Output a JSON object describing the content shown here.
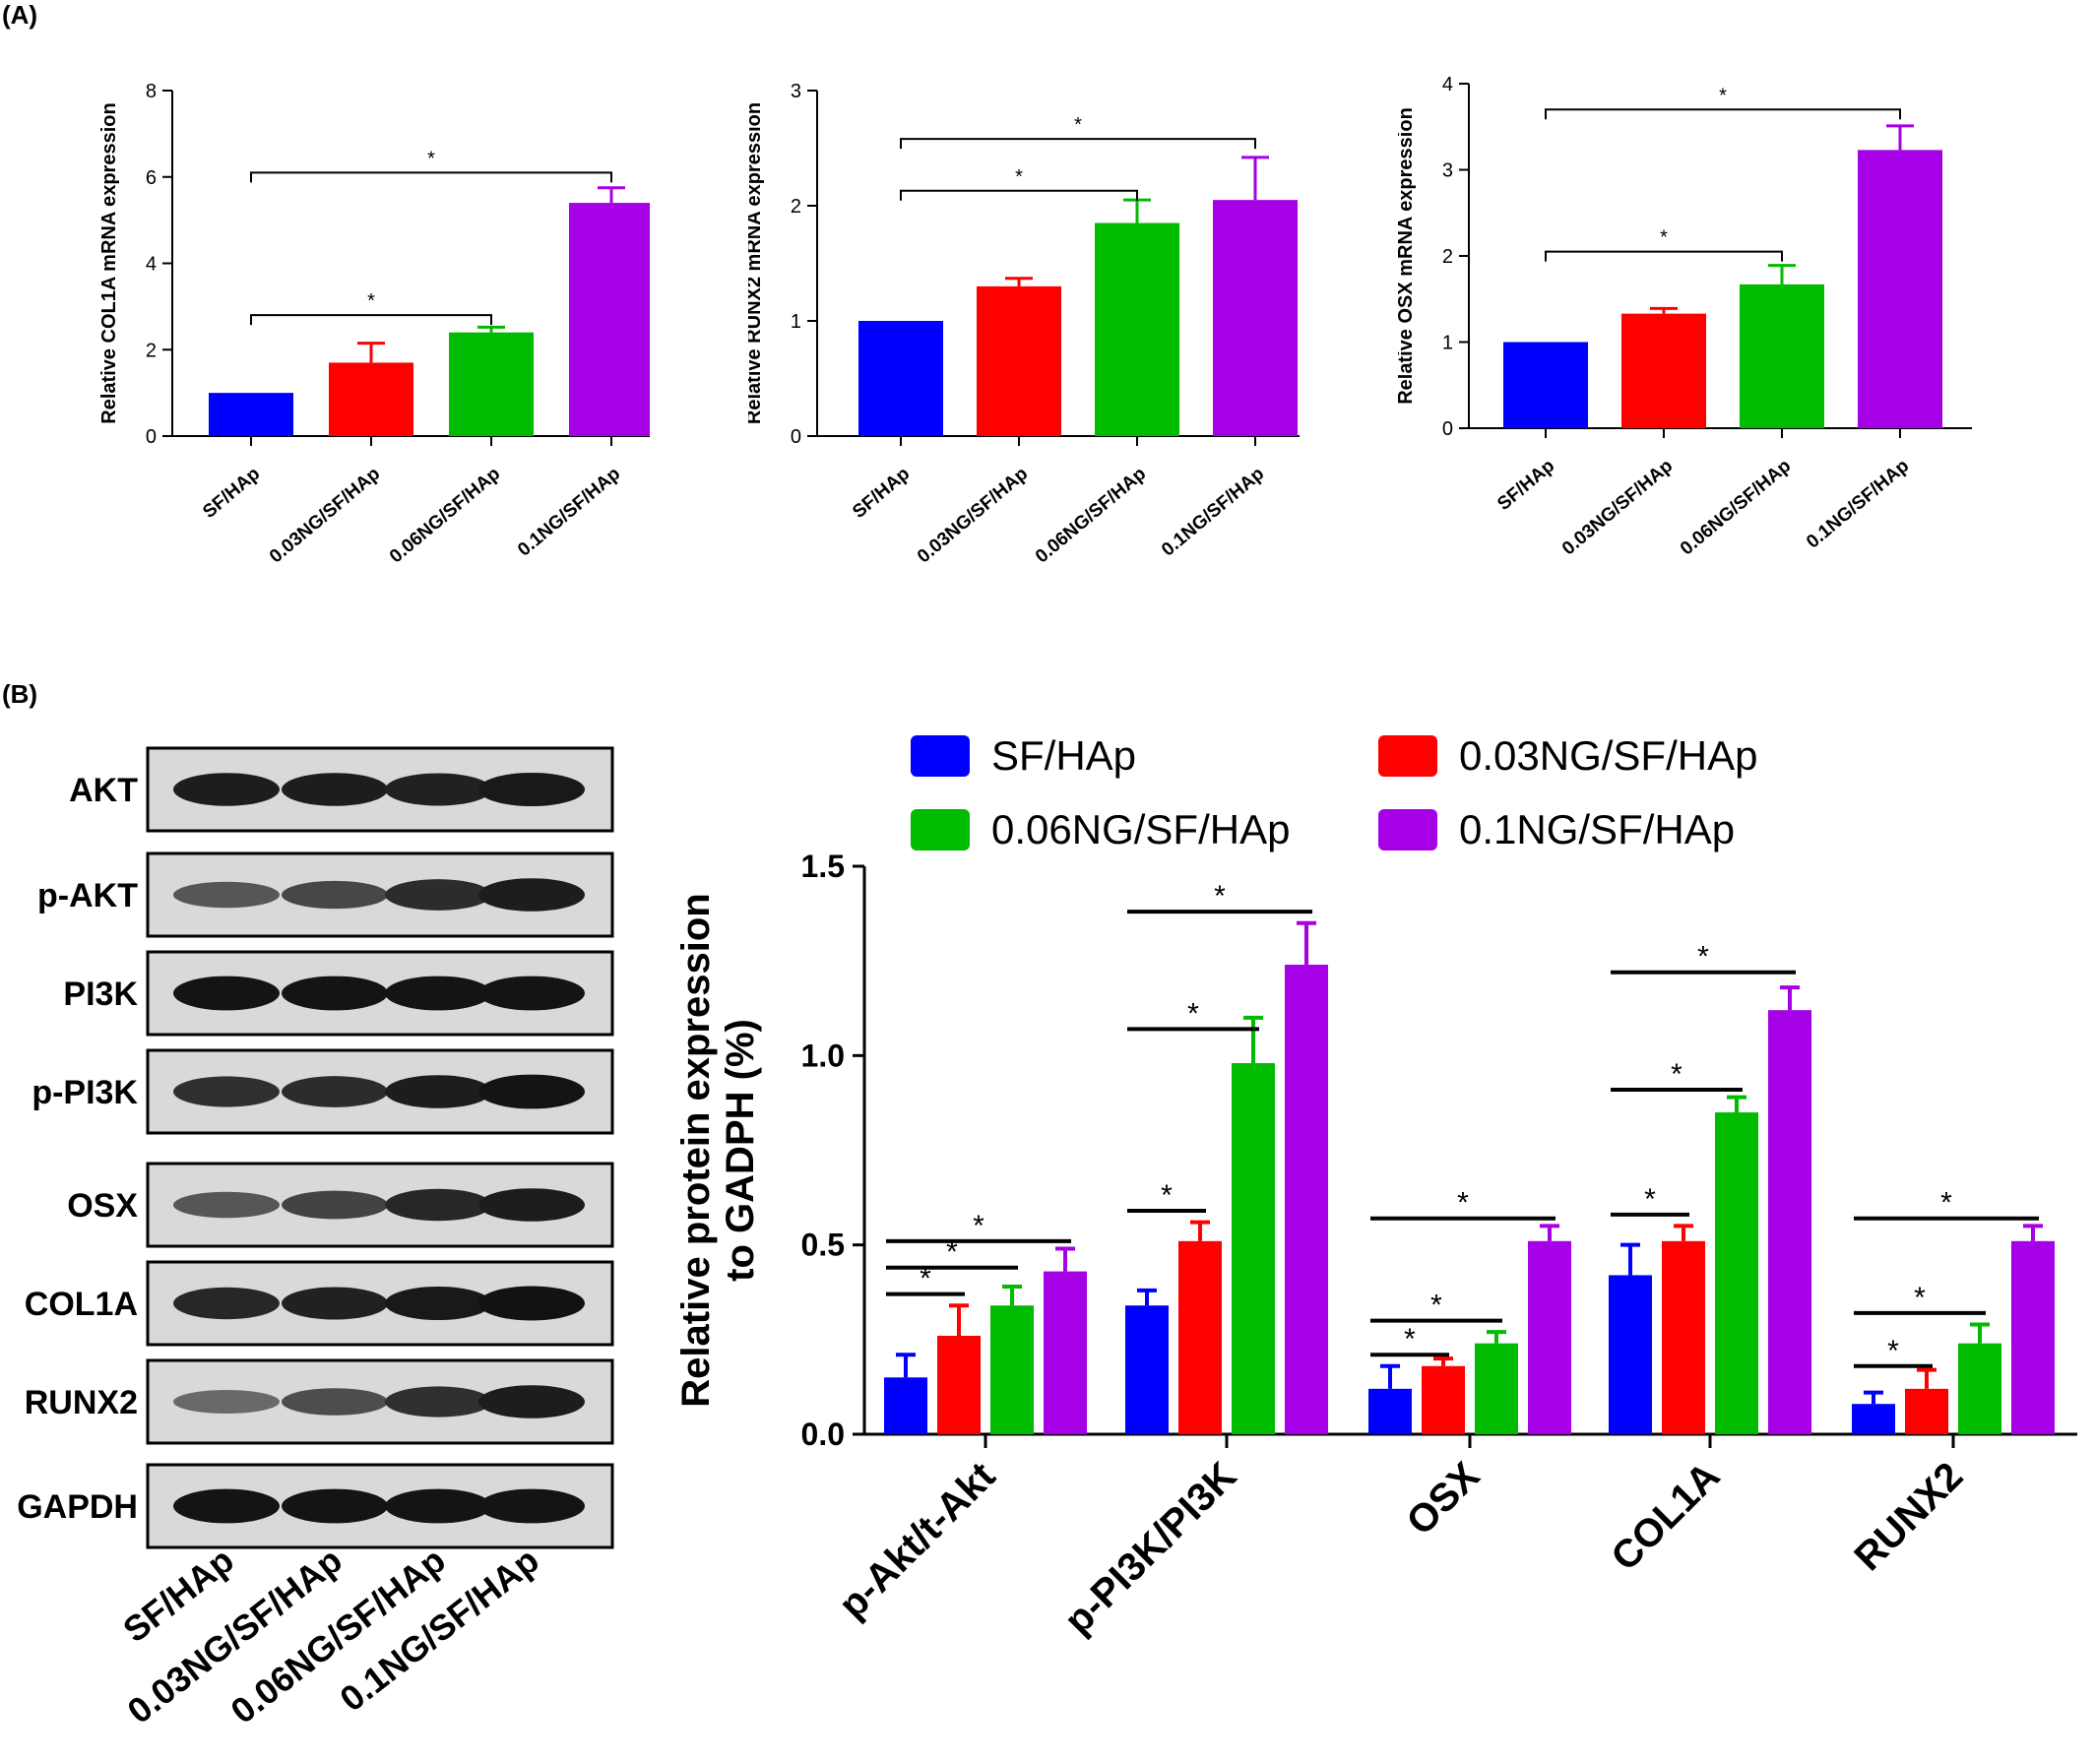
{
  "panels": {
    "a_label": "(A)",
    "b_label": "(B)"
  },
  "colors": {
    "SF/HAp": "#0000ff",
    "0.03NG/SF/HAp": "#ff0000",
    "0.06NG/SF/HAp": "#00bb00",
    "0.1NG/SF/HAp": "#a500e6"
  },
  "chart_data": [
    {
      "type": "bar",
      "panel": "A",
      "ylabel": "Relative COL1A mRNA expression",
      "ylim": [
        0,
        8
      ],
      "yticks": [
        0,
        2,
        4,
        6,
        8
      ],
      "categories": [
        "SF/HAp",
        "0.03NG/SF/HAp",
        "0.06NG/SF/HAp",
        "0.1NG/SF/HAp"
      ],
      "values": [
        1.0,
        1.7,
        2.4,
        5.4
      ],
      "errors": [
        0,
        0.45,
        0.12,
        0.35
      ],
      "significance": [
        {
          "from": 0,
          "to": 2,
          "y": 2.8,
          "label": "*"
        },
        {
          "from": 0,
          "to": 3,
          "y": 6.1,
          "label": "*"
        }
      ]
    },
    {
      "type": "bar",
      "panel": "A",
      "ylabel": "Relative RUNX2 mRNA expression",
      "ylim": [
        0,
        3
      ],
      "yticks": [
        0,
        1,
        2,
        3
      ],
      "categories": [
        "SF/HAp",
        "0.03NG/SF/HAp",
        "0.06NG/SF/HAp",
        "0.1NG/SF/HAp"
      ],
      "values": [
        1.0,
        1.3,
        1.85,
        2.05
      ],
      "errors": [
        0,
        0.07,
        0.2,
        0.37
      ],
      "significance": [
        {
          "from": 0,
          "to": 2,
          "y": 2.13,
          "label": "*"
        },
        {
          "from": 0,
          "to": 3,
          "y": 2.58,
          "label": "*"
        }
      ]
    },
    {
      "type": "bar",
      "panel": "A",
      "ylabel": "Relative OSX mRNA expression",
      "ylim": [
        0,
        4
      ],
      "yticks": [
        0,
        1,
        2,
        3,
        4
      ],
      "categories": [
        "SF/HAp",
        "0.03NG/SF/HAp",
        "0.06NG/SF/HAp",
        "0.1NG/SF/HAp"
      ],
      "values": [
        1.0,
        1.33,
        1.67,
        3.23
      ],
      "errors": [
        0,
        0.06,
        0.22,
        0.28
      ],
      "significance": [
        {
          "from": 0,
          "to": 2,
          "y": 2.05,
          "label": "*"
        },
        {
          "from": 0,
          "to": 3,
          "y": 3.7,
          "label": "*"
        }
      ]
    },
    {
      "type": "bar",
      "panel": "B",
      "ylabel": [
        "Relative protein expression",
        "to GADPH (%)"
      ],
      "ylim": [
        0,
        1.5
      ],
      "yticks": [
        "0.0",
        "0.5",
        "1.0",
        "1.5"
      ],
      "categories": [
        "p-Akt/t-Akt",
        "p-PI3K/PI3K",
        "OSX",
        "COL1A",
        "RUNX2"
      ],
      "legend": [
        "SF/HAp",
        "0.03NG/SF/HAp",
        "0.06NG/SF/HAp",
        "0.1NG/SF/HAp"
      ],
      "legend_position": "top",
      "series": [
        {
          "name": "SF/HAp",
          "values": [
            0.15,
            0.34,
            0.12,
            0.42,
            0.08
          ],
          "errors": [
            0.06,
            0.04,
            0.06,
            0.08,
            0.03
          ]
        },
        {
          "name": "0.03NG/SF/HAp",
          "values": [
            0.26,
            0.51,
            0.18,
            0.51,
            0.12
          ],
          "errors": [
            0.08,
            0.05,
            0.02,
            0.04,
            0.05
          ]
        },
        {
          "name": "0.06NG/SF/HAp",
          "values": [
            0.34,
            0.98,
            0.24,
            0.85,
            0.24
          ],
          "errors": [
            0.05,
            0.12,
            0.03,
            0.04,
            0.05
          ]
        },
        {
          "name": "0.1NG/SF/HAp",
          "values": [
            0.43,
            1.24,
            0.51,
            1.12,
            0.51
          ],
          "errors": [
            0.06,
            0.11,
            0.04,
            0.06,
            0.04
          ]
        }
      ],
      "significance": [
        {
          "group": 0,
          "from": 0,
          "to": 1,
          "y": 0.37,
          "label": "*"
        },
        {
          "group": 0,
          "from": 0,
          "to": 2,
          "y": 0.44,
          "label": "*"
        },
        {
          "group": 0,
          "from": 0,
          "to": 3,
          "y": 0.51,
          "label": "*"
        },
        {
          "group": 1,
          "from": 0,
          "to": 1,
          "y": 0.59,
          "label": "*"
        },
        {
          "group": 1,
          "from": 0,
          "to": 2,
          "y": 1.07,
          "label": "*"
        },
        {
          "group": 1,
          "from": 0,
          "to": 3,
          "y": 1.38,
          "label": "*"
        },
        {
          "group": 2,
          "from": 0,
          "to": 1,
          "y": 0.21,
          "label": "*"
        },
        {
          "group": 2,
          "from": 0,
          "to": 2,
          "y": 0.3,
          "label": "*"
        },
        {
          "group": 2,
          "from": 0,
          "to": 3,
          "y": 0.57,
          "label": "*"
        },
        {
          "group": 3,
          "from": 0,
          "to": 1,
          "y": 0.58,
          "label": "*"
        },
        {
          "group": 3,
          "from": 0,
          "to": 2,
          "y": 0.91,
          "label": "*"
        },
        {
          "group": 3,
          "from": 0,
          "to": 3,
          "y": 1.22,
          "label": "*"
        },
        {
          "group": 4,
          "from": 0,
          "to": 1,
          "y": 0.18,
          "label": "*"
        },
        {
          "group": 4,
          "from": 0,
          "to": 2,
          "y": 0.32,
          "label": "*"
        },
        {
          "group": 4,
          "from": 0,
          "to": 3,
          "y": 0.57,
          "label": "*"
        }
      ]
    }
  ],
  "western_blot": {
    "rows": [
      "AKT",
      "p-AKT",
      "PI3K",
      "p-PI3K",
      "OSX",
      "COL1A",
      "RUNX2",
      "GAPDH"
    ],
    "lanes": [
      "SF/HAp",
      "0.03NG/SF/HAp",
      "0.06NG/SF/HAp",
      "0.1NG/SF/HAp"
    ],
    "band_intensity": [
      [
        0.9,
        0.9,
        0.88,
        0.92
      ],
      [
        0.6,
        0.68,
        0.82,
        0.9
      ],
      [
        0.95,
        0.95,
        0.95,
        0.95
      ],
      [
        0.8,
        0.82,
        0.9,
        0.95
      ],
      [
        0.6,
        0.7,
        0.85,
        0.9
      ],
      [
        0.85,
        0.88,
        0.92,
        0.96
      ],
      [
        0.5,
        0.65,
        0.8,
        0.9
      ],
      [
        0.95,
        0.95,
        0.95,
        0.95
      ]
    ]
  }
}
